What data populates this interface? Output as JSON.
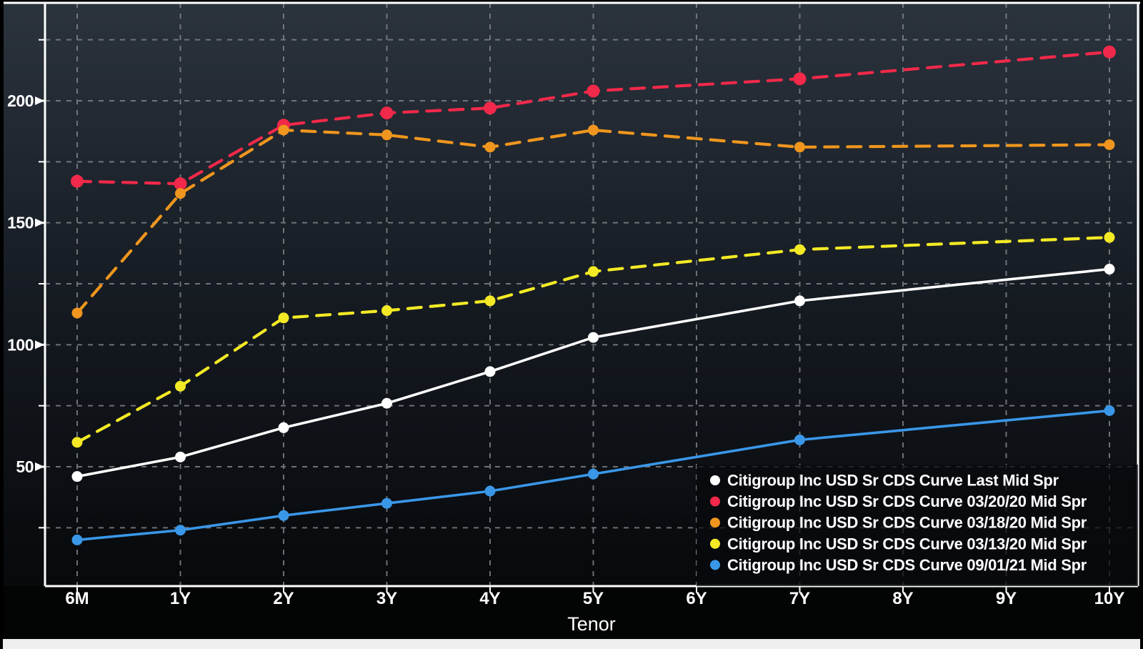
{
  "window": {
    "bottom_strip_color": "#efefef",
    "background": "#000000"
  },
  "chart_data": {
    "type": "line",
    "title": "",
    "xlabel": "Tenor",
    "categories": [
      "6M",
      "1Y",
      "2Y",
      "3Y",
      "4Y",
      "5Y",
      "6Y",
      "7Y",
      "8Y",
      "9Y",
      "10Y"
    ],
    "y_major_ticks": [
      50,
      100,
      150,
      200
    ],
    "y_minor_gridlines": [
      25,
      75,
      125,
      175,
      225
    ],
    "ylim": [
      0,
      240
    ],
    "grid": "dashed-both-axes",
    "legend_position": "bottom-right-inside",
    "colors": {
      "plot_bg_top": "#2b333d",
      "plot_bg_mid": "#141920",
      "plot_bg_bottom": "#07090b",
      "grid": "#85898d",
      "axis": "#ffffff",
      "tick_label": "#ffffff",
      "legend_bg": "rgba(8,10,13,0.74)"
    },
    "series": [
      {
        "name": "Citigroup Inc USD Sr CDS Curve Last Mid Spr",
        "color": "#ffffff",
        "style": "solid",
        "marker": "circle",
        "values": [
          46,
          54,
          66,
          76,
          89,
          103,
          null,
          118,
          null,
          null,
          131
        ]
      },
      {
        "name": "Citigroup Inc USD Sr CDS Curve 03/20/20 Mid Spr",
        "color": "#f2294a",
        "style": "dashed",
        "marker": "circle",
        "values": [
          167,
          166,
          190,
          195,
          197,
          204,
          null,
          209,
          null,
          null,
          220
        ]
      },
      {
        "name": "Citigroup Inc USD Sr CDS Curve 03/18/20 Mid Spr",
        "color": "#f0961e",
        "style": "dashed",
        "marker": "circle",
        "values": [
          113,
          162,
          188,
          186,
          181,
          188,
          null,
          181,
          null,
          null,
          182
        ]
      },
      {
        "name": "Citigroup Inc USD Sr CDS Curve 03/13/20 Mid Spr",
        "color": "#f3ea25",
        "style": "dashed",
        "marker": "circle",
        "values": [
          60,
          83,
          111,
          114,
          118,
          130,
          null,
          139,
          null,
          null,
          144
        ]
      },
      {
        "name": "Citigroup Inc USD Sr CDS Curve 09/01/21 Mid Spr",
        "color": "#3a97e8",
        "style": "solid",
        "marker": "circle",
        "values": [
          20,
          24,
          30,
          35,
          40,
          47,
          null,
          61,
          null,
          null,
          73
        ]
      }
    ]
  }
}
